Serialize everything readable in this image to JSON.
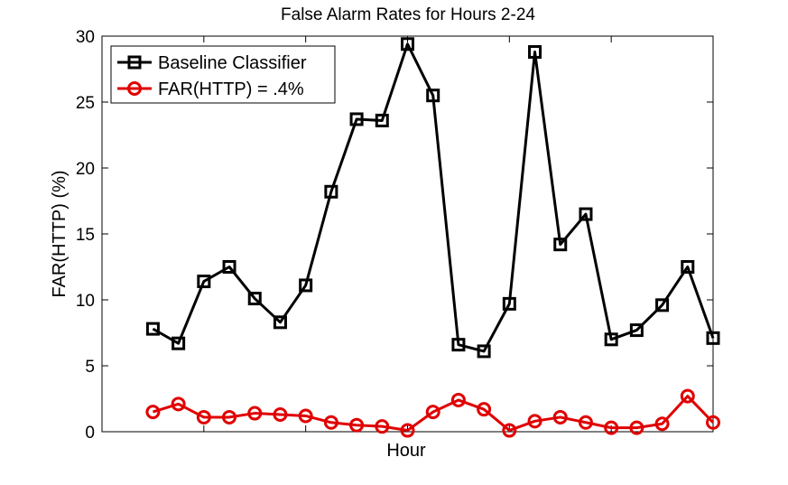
{
  "chart_data": {
    "type": "line",
    "title": "False Alarm Rates for Hours 2-24",
    "xlabel": "Hour",
    "ylabel": "FAR(HTTP) (%)",
    "xlim": [
      0,
      24
    ],
    "ylim": [
      0,
      30
    ],
    "yticks": [
      0,
      5,
      10,
      15,
      20,
      25,
      30
    ],
    "ytick_labels": [
      "0",
      "5",
      "10",
      "15",
      "20",
      "25",
      "30"
    ],
    "xticks_unlabeled": [
      4,
      8,
      12,
      16,
      20
    ],
    "grid": false,
    "legend_position": "top-left",
    "x": [
      2,
      3,
      4,
      5,
      6,
      7,
      8,
      9,
      10,
      11,
      12,
      13,
      14,
      15,
      16,
      17,
      18,
      19,
      20,
      21,
      22,
      23,
      24
    ],
    "series": [
      {
        "name": "Baseline Classifier",
        "color": "#000000",
        "marker": "square",
        "values": [
          7.8,
          6.7,
          11.4,
          12.5,
          10.1,
          8.3,
          11.1,
          18.2,
          23.7,
          23.6,
          29.4,
          25.5,
          6.6,
          6.1,
          9.7,
          28.8,
          14.2,
          16.5,
          7.0,
          7.7,
          9.6,
          12.5,
          7.1
        ]
      },
      {
        "name": "FAR(HTTP) = .4%",
        "color": "#e00000",
        "marker": "circle",
        "values": [
          1.5,
          2.1,
          1.1,
          1.1,
          1.4,
          1.3,
          1.2,
          0.7,
          0.5,
          0.4,
          0.1,
          1.5,
          2.4,
          1.7,
          0.1,
          0.8,
          1.1,
          0.7,
          0.3,
          0.3,
          0.6,
          2.7,
          0.7
        ]
      }
    ]
  }
}
